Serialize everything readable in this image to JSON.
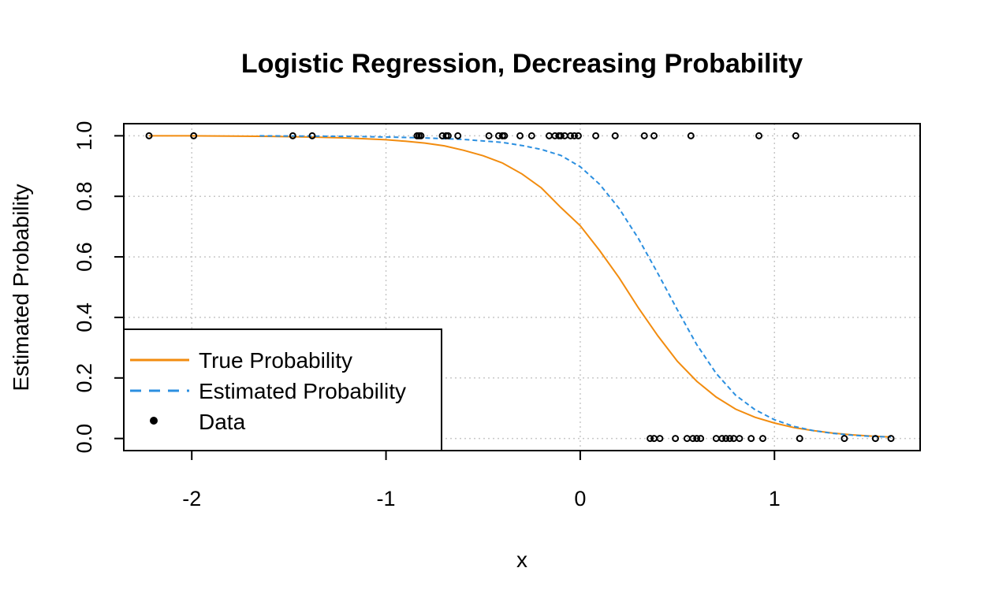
{
  "chart_data": {
    "type": "line",
    "title": "Logistic Regression, Decreasing Probability",
    "xlabel": "x",
    "ylabel": "Estimated Probability",
    "xlim": [
      -2.35,
      1.75
    ],
    "ylim": [
      -0.04,
      1.04
    ],
    "x_ticks": [
      -2,
      -1,
      0,
      1
    ],
    "x_tick_labels": [
      "-2",
      "-1",
      "0",
      "1"
    ],
    "y_ticks": [
      0.0,
      0.2,
      0.4,
      0.6,
      0.8,
      1.0
    ],
    "y_tick_labels": [
      "0.0",
      "0.2",
      "0.4",
      "0.6",
      "0.8",
      "1.0"
    ],
    "grid": true,
    "legend_position": "bottom-left",
    "colors": {
      "true": "#f28c0f",
      "estimated": "#2b8fe0",
      "data": "#000000",
      "grid": "#c8c8c8"
    },
    "series": [
      {
        "name": "True Probability",
        "style": "solid",
        "x": [
          -2.22,
          -2.0,
          -1.8,
          -1.6,
          -1.4,
          -1.2,
          -1.0,
          -0.9,
          -0.8,
          -0.7,
          -0.6,
          -0.5,
          -0.4,
          -0.3,
          -0.2,
          -0.1,
          0.0,
          0.1,
          0.2,
          0.3,
          0.4,
          0.5,
          0.6,
          0.7,
          0.8,
          0.9,
          1.0,
          1.1,
          1.2,
          1.3,
          1.4,
          1.5,
          1.6
        ],
        "y": [
          1.0,
          1.0,
          0.999,
          0.998,
          0.996,
          0.993,
          0.987,
          0.982,
          0.976,
          0.967,
          0.952,
          0.934,
          0.91,
          0.874,
          0.828,
          0.763,
          0.703,
          0.621,
          0.531,
          0.431,
          0.339,
          0.255,
          0.189,
          0.137,
          0.097,
          0.07,
          0.051,
          0.036,
          0.026,
          0.018,
          0.012,
          0.008,
          0.005
        ]
      },
      {
        "name": "Estimated Probability",
        "style": "dashed",
        "x": [
          -1.65,
          -1.4,
          -1.2,
          -1.0,
          -0.8,
          -0.6,
          -0.4,
          -0.3,
          -0.2,
          -0.1,
          0.0,
          0.1,
          0.2,
          0.3,
          0.4,
          0.5,
          0.6,
          0.7,
          0.8,
          0.9,
          1.0,
          1.1,
          1.2,
          1.3,
          1.4,
          1.5,
          1.6
        ],
        "y": [
          1.0,
          0.999,
          0.998,
          0.996,
          0.993,
          0.988,
          0.978,
          0.968,
          0.955,
          0.935,
          0.898,
          0.84,
          0.76,
          0.66,
          0.545,
          0.425,
          0.31,
          0.215,
          0.143,
          0.095,
          0.062,
          0.04,
          0.026,
          0.017,
          0.011,
          0.007,
          0.005
        ]
      },
      {
        "name": "Data",
        "style": "points",
        "x": [
          -2.22,
          -1.99,
          -1.48,
          -1.38,
          -0.84,
          -0.83,
          -0.82,
          -0.71,
          -0.69,
          -0.68,
          -0.63,
          -0.47,
          -0.42,
          -0.4,
          -0.39,
          -0.31,
          -0.25,
          -0.16,
          -0.13,
          -0.11,
          -0.1,
          -0.08,
          -0.05,
          -0.03,
          -0.01,
          0.08,
          0.18,
          0.33,
          0.38,
          0.57,
          0.92,
          1.11,
          0.36,
          0.38,
          0.41,
          0.49,
          0.55,
          0.58,
          0.6,
          0.62,
          0.7,
          0.73,
          0.75,
          0.77,
          0.79,
          0.82,
          0.88,
          0.94,
          1.13,
          1.36,
          1.52,
          1.6
        ],
        "y": [
          1,
          1,
          1,
          1,
          1,
          1,
          1,
          1,
          1,
          1,
          1,
          1,
          1,
          1,
          1,
          1,
          1,
          1,
          1,
          1,
          1,
          1,
          1,
          1,
          1,
          1,
          1,
          1,
          1,
          1,
          1,
          1,
          0,
          0,
          0,
          0,
          0,
          0,
          0,
          0,
          0,
          0,
          0,
          0,
          0,
          0,
          0,
          0,
          0,
          0,
          0,
          0
        ]
      }
    ],
    "legend": [
      {
        "label": "True Probability",
        "style": "solid"
      },
      {
        "label": "Estimated Probability",
        "style": "dashed"
      },
      {
        "label": "Data",
        "style": "points"
      }
    ]
  }
}
